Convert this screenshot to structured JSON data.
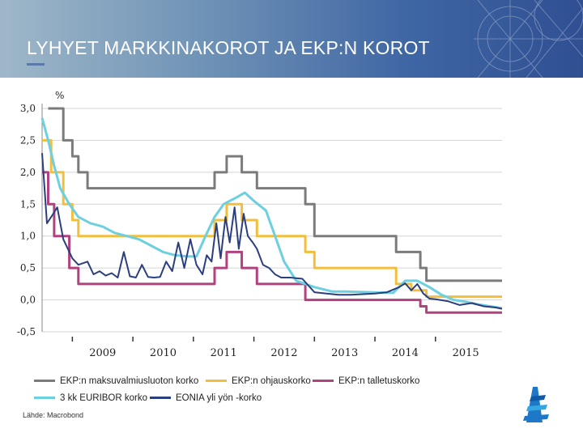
{
  "header": {
    "title": "LYHYET MARKKINAKOROT JA EKP:N KOROT"
  },
  "source": "Lähde: Macrobond",
  "colors": {
    "gray": "#7b7b7b",
    "yellow": "#f2be3e",
    "magenta": "#b0427d",
    "cyan": "#6cd0e0",
    "navy": "#2b3f7e"
  },
  "chart_data": {
    "type": "line",
    "title": "LYHYET MARKKINAKOROT JA EKP:N KOROT",
    "ylabel": "%",
    "xlabel": "",
    "ylim": [
      -0.5,
      3.0
    ],
    "xlim": [
      2008.0,
      2015.6
    ],
    "yticks": [
      {
        "v": 3.0,
        "label": "3,0"
      },
      {
        "v": 2.5,
        "label": "2,5"
      },
      {
        "v": 2.0,
        "label": "2,0"
      },
      {
        "v": 1.5,
        "label": "1,5"
      },
      {
        "v": 1.0,
        "label": "1,0"
      },
      {
        "v": 0.5,
        "label": "0,5"
      },
      {
        "v": 0.0,
        "label": "0,0"
      },
      {
        "v": -0.5,
        "label": "-0,5"
      }
    ],
    "xticks": [
      {
        "v": 2009,
        "label": "2009"
      },
      {
        "v": 2010,
        "label": "2010"
      },
      {
        "v": 2011,
        "label": "2011"
      },
      {
        "v": 2012,
        "label": "2012"
      },
      {
        "v": 2013,
        "label": "2013"
      },
      {
        "v": 2014,
        "label": "2014"
      },
      {
        "v": 2015,
        "label": "2015"
      }
    ],
    "year_separators": [
      2008.5,
      2009.5,
      2010.5,
      2011.5,
      2012.5,
      2013.5,
      2014.5
    ],
    "grid": true,
    "legend": "bottom",
    "series": [
      {
        "name": "EKP:n maksuvalmiusluoton korko",
        "color": "#7b7b7b",
        "step": true,
        "x": [
          2008.1,
          2008.3,
          2008.35,
          2008.4,
          2008.5,
          2008.55,
          2008.6,
          2008.75,
          2009.85,
          2010.85,
          2011.05,
          2011.25,
          2011.3,
          2011.55,
          2012.35,
          2012.5,
          2013.85,
          2014.1,
          2014.25,
          2014.35,
          2015.6
        ],
        "y": [
          3.0,
          3.0,
          2.5,
          2.5,
          2.25,
          2.25,
          2.0,
          1.75,
          1.75,
          2.0,
          2.25,
          2.25,
          2.0,
          1.75,
          1.5,
          1.0,
          0.75,
          0.75,
          0.5,
          0.3,
          0.3
        ]
      },
      {
        "name": "EKP:n ohjauskorko",
        "color": "#f2be3e",
        "step": true,
        "x": [
          2008.0,
          2008.1,
          2008.15,
          2008.3,
          2008.35,
          2008.45,
          2008.5,
          2008.6,
          2009.85,
          2010.85,
          2011.05,
          2011.3,
          2011.55,
          2012.35,
          2012.5,
          2013.85,
          2014.1,
          2014.25,
          2014.35,
          2015.6
        ],
        "y": [
          2.5,
          2.5,
          2.0,
          2.0,
          1.5,
          1.5,
          1.25,
          1.0,
          1.0,
          1.25,
          1.5,
          1.25,
          1.0,
          0.75,
          0.5,
          0.25,
          0.15,
          0.15,
          0.05,
          0.05
        ]
      },
      {
        "name": "EKP:n talletuskorko",
        "color": "#b0427d",
        "step": true,
        "x": [
          2008.0,
          2008.05,
          2008.1,
          2008.2,
          2008.3,
          2008.45,
          2008.6,
          2009.85,
          2010.85,
          2011.05,
          2011.3,
          2011.55,
          2012.35,
          2013.85,
          2014.1,
          2014.25,
          2014.35,
          2015.6
        ],
        "y": [
          2.0,
          2.0,
          1.5,
          1.0,
          1.0,
          0.5,
          0.25,
          0.25,
          0.5,
          0.75,
          0.5,
          0.25,
          0.0,
          0.0,
          0.0,
          -0.1,
          -0.2,
          -0.2
        ]
      },
      {
        "name": "3 kk EURIBOR korko",
        "color": "#6cd0e0",
        "step": false,
        "x": [
          2008.0,
          2008.1,
          2008.2,
          2008.3,
          2008.45,
          2008.6,
          2008.8,
          2009.0,
          2009.2,
          2009.4,
          2009.6,
          2009.8,
          2010.0,
          2010.2,
          2010.4,
          2010.55,
          2010.7,
          2010.85,
          2011.0,
          2011.1,
          2011.2,
          2011.35,
          2011.5,
          2011.7,
          2011.85,
          2012.0,
          2012.2,
          2012.5,
          2012.8,
          2013.0,
          2013.4,
          2013.8,
          2014.0,
          2014.2,
          2014.4,
          2014.6,
          2014.8,
          2015.0,
          2015.2,
          2015.4,
          2015.6
        ],
        "y": [
          2.85,
          2.5,
          2.1,
          1.75,
          1.5,
          1.3,
          1.2,
          1.15,
          1.05,
          1.0,
          0.95,
          0.85,
          0.75,
          0.7,
          0.68,
          0.68,
          1.0,
          1.3,
          1.5,
          1.55,
          1.6,
          1.68,
          1.55,
          1.4,
          1.0,
          0.6,
          0.3,
          0.2,
          0.13,
          0.13,
          0.12,
          0.11,
          0.3,
          0.3,
          0.2,
          0.08,
          0.0,
          -0.03,
          -0.07,
          -0.1,
          -0.13
        ]
      },
      {
        "name": "EONIA yli yön -korko",
        "color": "#2b3f7e",
        "step": false,
        "x": [
          2008.0,
          2008.08,
          2008.15,
          2008.25,
          2008.35,
          2008.5,
          2008.6,
          2008.75,
          2008.85,
          2008.95,
          2009.05,
          2009.15,
          2009.25,
          2009.35,
          2009.45,
          2009.55,
          2009.65,
          2009.75,
          2009.85,
          2009.95,
          2010.05,
          2010.15,
          2010.25,
          2010.35,
          2010.45,
          2010.55,
          2010.65,
          2010.72,
          2010.8,
          2010.88,
          2010.95,
          2011.03,
          2011.1,
          2011.18,
          2011.25,
          2011.33,
          2011.4,
          2011.48,
          2011.55,
          2011.65,
          2011.75,
          2011.85,
          2011.95,
          2012.1,
          2012.3,
          2012.5,
          2012.7,
          2012.9,
          2013.1,
          2013.3,
          2013.5,
          2013.7,
          2013.9,
          2014.0,
          2014.1,
          2014.2,
          2014.3,
          2014.4,
          2014.5,
          2014.7,
          2014.9,
          2015.1,
          2015.3,
          2015.5,
          2015.6
        ],
        "y": [
          2.3,
          1.2,
          1.3,
          1.45,
          0.95,
          0.65,
          0.55,
          0.6,
          0.4,
          0.45,
          0.38,
          0.42,
          0.35,
          0.75,
          0.37,
          0.35,
          0.55,
          0.36,
          0.35,
          0.36,
          0.6,
          0.45,
          0.9,
          0.5,
          0.95,
          0.55,
          0.4,
          0.7,
          0.6,
          1.2,
          0.65,
          1.3,
          0.9,
          1.45,
          0.8,
          1.35,
          1.0,
          0.9,
          0.8,
          0.55,
          0.5,
          0.4,
          0.35,
          0.35,
          0.33,
          0.12,
          0.1,
          0.08,
          0.08,
          0.09,
          0.1,
          0.12,
          0.2,
          0.26,
          0.15,
          0.25,
          0.1,
          0.02,
          0.01,
          -0.02,
          -0.08,
          -0.05,
          -0.1,
          -0.12,
          -0.14
        ]
      }
    ]
  }
}
